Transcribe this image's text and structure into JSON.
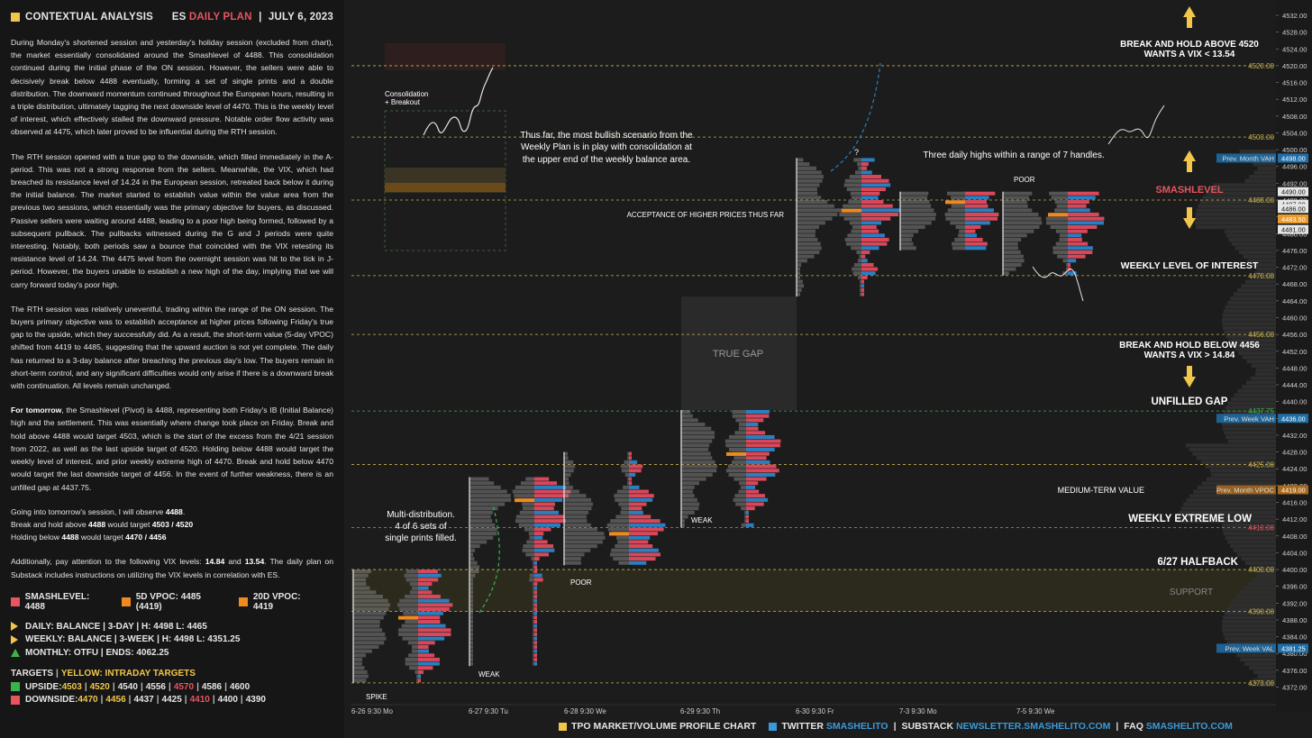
{
  "header": {
    "title": "CONTEXTUAL ANALYSIS",
    "symbol": "ES",
    "plan": "DAILY PLAN",
    "sep": "|",
    "date": "JULY 6, 2023"
  },
  "paragraphs": {
    "p1": "During Monday's shortened session and yesterday's holiday session (excluded from chart), the market essentially consolidated around the Smashlevel of 4488. This consolidation continued during the initial phase of the ON session. However, the sellers were able to decisively break below 4488 eventually, forming a set of single prints and a double distribution. The downward momentum continued throughout the European hours, resulting in a triple distribution, ultimately tagging the next downside level of 4470. This is the weekly level of interest, which effectively stalled the downward pressure. Notable order flow activity was observed at 4475, which later proved to be influential during the RTH session.",
    "p2": "The RTH session opened with a true gap to the downside, which filled immediately in the A-period. This was not a strong response from the sellers. Meanwhile, the VIX, which had breached its resistance level of 14.24 in the European session, retreated back below it during the initial balance. The market started to establish value within the value area from the previous two sessions, which essentially was the primary objective for buyers, as discussed. Passive sellers were waiting around 4488, leading to a poor high being formed, followed by a subsequent pullback. The pullbacks witnessed during the G and J periods were quite interesting. Notably, both periods saw a bounce that coincided with the VIX retesting its resistance level of 14.24. The 4475 level from the overnight session was hit to the tick in J-period. However, the buyers unable to establish a new high of the day, implying that we will carry forward today's poor high.",
    "p3": "The RTH session was relatively uneventful, trading within the range of the ON session. The buyers primary objective was to establish acceptance at higher prices following Friday's true gap to the upside, which they successfully did. As a result, the short-term value (5-day VPOC) shifted from 4419 to 4485, suggesting that the upward auction is not yet complete. The daily has returned to a 3-day balance after breaching the previous day's low. The buyers remain in short-term control, and any significant difficulties would only arise if there is a downward break with continuation. All levels remain unchanged.",
    "p4_bold": "For tomorrow",
    "p4": ", the Smashlevel (Pivot) is 4488, representing both Friday's IB (Initial Balance) high and the settlement. This was essentially where change took place on Friday. Break and hold above 4488 would target 4503, which is the start of the excess from the 4/21 session from 2022, as well as the last upside target of 4520. Holding below 4488 would target the weekly level of interest, and prior weekly extreme high of 4470. Break and hold below 4470 would target the last downside target of 4456. In the event of further weakness, there is an unfilled gap at 4437.75.",
    "obs1": "Going into tomorrow's session, I will observe ",
    "obs1_b": "4488",
    "obs2": "Break and hold above ",
    "obs2_b": "4488",
    "obs2_c": " would target ",
    "obs2_d": "4503 / 4520",
    "obs3": "Holding below ",
    "obs3_b": "4488",
    "obs3_c": " would target ",
    "obs3_d": "4470 / 4456",
    "vix1": "Additionally, pay attention to the following VIX levels: ",
    "vix_a": "14.84",
    "vix_and": " and ",
    "vix_b": "13.54",
    "vix2": ". The daily plan on Substack includes instructions on utilizing the VIX levels in correlation with ES."
  },
  "legend": {
    "smashlevel": "SMASHLEVEL: 4488",
    "vpoc5": "5D VPOC: 4485 (4419)",
    "vpoc20": "20D VPOC: 4419",
    "daily": "DAILY: BALANCE  |  3-DAY  |  H: 4498 L: 4465",
    "weekly": "WEEKLY: BALANCE  |  3-WEEK  |  H: 4498 L: 4351.25",
    "monthly": "MONTHLY: OTFU  |  ENDS: 4062.25"
  },
  "targets": {
    "title": "TARGETS",
    "sep": "|",
    "yellow_note": "YELLOW: INTRADAY TARGETS",
    "upside_label": "UPSIDE: ",
    "upside": [
      "4503",
      "4520",
      "4540",
      "4556",
      "4570",
      "4586",
      "4600"
    ],
    "downside_label": "DOWNSIDE: ",
    "downside": [
      "4470",
      "4456",
      "4437",
      "4425",
      "4410",
      "4400",
      "4390"
    ]
  },
  "chart_data": {
    "type": "market profile",
    "title": "TPO MARKET/VOLUME PROFILE CHART",
    "ylim": [
      4370,
      4533
    ],
    "y_ticks": [
      "4532.00",
      "4528.00",
      "4524.00",
      "4520.00",
      "4516.00",
      "4512.00",
      "4508.00",
      "4504.00",
      "4500.00",
      "4496.00",
      "4492.00",
      "4488.00",
      "4484.00",
      "4480.00",
      "4476.00",
      "4472.00",
      "4468.00",
      "4464.00",
      "4460.00",
      "4456.00",
      "4452.00",
      "4448.00",
      "4444.00",
      "4440.00",
      "4436.00",
      "4432.00",
      "4428.00",
      "4424.00",
      "4420.00",
      "4416.00",
      "4412.00",
      "4408.00",
      "4404.00",
      "4400.00",
      "4396.00",
      "4392.00",
      "4388.00",
      "4384.00",
      "4380.00",
      "4376.00",
      "4372.00"
    ],
    "x_sessions": [
      "6-26  9:30 Mo",
      "6-27  9:30 Tu",
      "6-28  9:30 We",
      "6-29  9:30 Th",
      "6-30  9:30 Fr",
      "7-3  9:30 Mo",
      "7-5  9:30 We"
    ],
    "levels": [
      {
        "price": 4520.0,
        "label": "4520.00",
        "color": "#c9b24a",
        "kind": "target"
      },
      {
        "price": 4503.0,
        "label": "4503.00",
        "color": "#c9b24a",
        "kind": "target"
      },
      {
        "price": 4488.0,
        "label": "4488.00",
        "color": "#c9b24a",
        "kind": "smash"
      },
      {
        "price": 4470.0,
        "label": "4470.00",
        "color": "#c9b24a",
        "kind": "target"
      },
      {
        "price": 4456.0,
        "label": "4456.00",
        "color": "#c9b24a",
        "kind": "target"
      },
      {
        "price": 4437.75,
        "label": "4437.75",
        "color": "#3cb24a",
        "kind": "gap"
      },
      {
        "price": 4425.0,
        "label": "4425.00",
        "color": "#c9b24a",
        "kind": "target"
      },
      {
        "price": 4410.0,
        "label": "4410.00",
        "color": "#e8545f",
        "kind": "target"
      },
      {
        "price": 4400.0,
        "label": "4400.00",
        "color": "#c9b24a",
        "kind": "target"
      },
      {
        "price": 4390.0,
        "label": "4390.00",
        "color": "#c9b24a",
        "kind": "target"
      },
      {
        "price": 4373.0,
        "label": "4373.00",
        "color": "#c9b24a",
        "kind": "target"
      }
    ],
    "price_tags": [
      {
        "price": 4498,
        "label": "4498.00",
        "name": "Prev. Month VAH",
        "color": "#1f6fa8"
      },
      {
        "price": 4490,
        "label": "4490.00",
        "name": "",
        "color": "#e6e6e6"
      },
      {
        "price": 4487,
        "label": "4487.00",
        "name": "",
        "color": "#e6e6e6"
      },
      {
        "price": 4486,
        "label": "4486.00",
        "name": "",
        "color": "#e6e6e6"
      },
      {
        "price": 4483.5,
        "label": "4483.50",
        "name": "",
        "color": "#e89a2a"
      },
      {
        "price": 4481,
        "label": "4481.00",
        "name": "",
        "color": "#e6e6e6"
      },
      {
        "price": 4436,
        "label": "4436.00",
        "name": "Prev. Week VAH",
        "color": "#1f6fa8"
      },
      {
        "price": 4419,
        "label": "4419.00",
        "name": "Prev. Month VPOC",
        "color": "#a86a1f"
      },
      {
        "price": 4381.25,
        "label": "4381.25",
        "name": "Prev. Week VAL",
        "color": "#1f6fa8"
      }
    ],
    "annotations": {
      "break_above": "BREAK AND HOLD ABOVE 4520",
      "break_above_vix": "WANTS A VIX < 13.54",
      "smashlevel": "SMASHLEVEL",
      "weekly_interest": "WEEKLY LEVEL OF INTEREST",
      "break_below": "BREAK AND HOLD BELOW 4456",
      "break_below_vix": "WANTS A VIX > 14.84",
      "unfilled_gap": "UNFILLED GAP",
      "medium_term_value": "MEDIUM-TERM VALUE",
      "weekly_extreme_low": "WEEKLY EXTREME LOW",
      "halfback": "6/27 HALFBACK",
      "support": "SUPPORT",
      "true_gap": "TRUE GAP",
      "three_highs": "Three daily highs within a range of 7 handles.",
      "bullish1": "Thus far, the most bullish scenario from the",
      "bullish2": "Weekly Plan is in play with consolidation at",
      "bullish3": "the upper end of the weekly balance area.",
      "acceptance": "ACCEPTANCE OF HIGHER PRICES THUS FAR",
      "consolidation1": "Consolidation",
      "consolidation2": "+ Breakout",
      "multi1": "Multi-distribution.",
      "multi2": "4 of 6 sets of",
      "multi3": "single prints filled.",
      "poor1": "POOR",
      "poor2": "POOR",
      "weak1": "WEAK",
      "weak2": "WEAK",
      "spike": "SPIKE",
      "question": "?"
    }
  },
  "footer": {
    "chart_label": "TPO MARKET/VOLUME PROFILE CHART",
    "twitter": "TWITTER",
    "twitter_handle": "SMASHELITO",
    "sep": "|",
    "substack": "SUBSTACK",
    "substack_url": "NEWSLETTER.SMASHELITO.COM",
    "faq": "FAQ",
    "faq_url": "SMASHELITO.COM"
  },
  "colors": {
    "yellow": "#f1c64a",
    "red": "#e8545f",
    "orange": "#ee8a1f",
    "blue": "#3a9ad9",
    "green": "#3cb24a"
  }
}
